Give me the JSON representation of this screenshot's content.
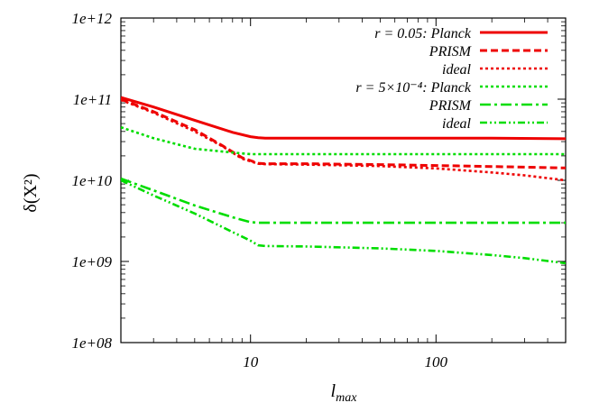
{
  "chart_data": {
    "type": "line",
    "xlabel": "l",
    "xlabel_sub": "max",
    "ylabel": "δ(X²)",
    "x_scale": "log",
    "y_scale": "log",
    "xlim": [
      2,
      500
    ],
    "ylim": [
      100000000.0,
      1000000000000.0
    ],
    "x_ticks": [
      {
        "value": 10,
        "label": "10"
      },
      {
        "value": 100,
        "label": "100"
      }
    ],
    "y_ticks": [
      {
        "value": 100000000.0,
        "label": "1e+08"
      },
      {
        "value": 1000000000.0,
        "label": "1e+09"
      },
      {
        "value": 10000000000.0,
        "label": "1e+10"
      },
      {
        "value": 100000000000.0,
        "label": "1e+11"
      },
      {
        "value": 1000000000000.0,
        "label": "1e+12"
      }
    ],
    "grid": false,
    "legend_position": "top-right",
    "series": [
      {
        "name": "r = 0.05: Planck",
        "color": "#ee0000",
        "dash": "solid",
        "x": [
          2,
          3,
          5,
          8,
          10,
          11,
          12,
          20,
          50,
          100,
          200,
          500
        ],
        "y": [
          105000000000.0,
          80000000000.0,
          55000000000.0,
          39000000000.0,
          34500000000.0,
          33500000000.0,
          33000000000.0,
          33000000000.0,
          33000000000.0,
          33000000000.0,
          33000000000.0,
          32500000000.0
        ]
      },
      {
        "name": "PRISM",
        "color": "#ee0000",
        "dash": "dashed",
        "x": [
          2,
          3,
          5,
          7,
          9,
          11,
          12,
          20,
          50,
          100,
          200,
          500
        ],
        "y": [
          100000000000.0,
          70000000000.0,
          42000000000.0,
          27000000000.0,
          19000000000.0,
          16200000000.0,
          16000000000.0,
          16000000000.0,
          15600000000.0,
          15200000000.0,
          14800000000.0,
          14200000000.0
        ]
      },
      {
        "name": "ideal",
        "color": "#ee0000",
        "dash": "dotted",
        "x": [
          2,
          3,
          5,
          7,
          9,
          11,
          12,
          20,
          50,
          100,
          200,
          300,
          500
        ],
        "y": [
          98000000000.0,
          68000000000.0,
          40000000000.0,
          26500000000.0,
          18500000000.0,
          16000000000.0,
          15800000000.0,
          15600000000.0,
          15000000000.0,
          14000000000.0,
          12500000000.0,
          11500000000.0,
          10000000000.0
        ]
      },
      {
        "name": "r = 5×10⁻⁴: Planck",
        "color": "#00dd00",
        "dash": "dotted",
        "x": [
          2,
          3,
          5,
          8,
          10,
          11,
          20,
          50,
          100,
          200,
          500
        ],
        "y": [
          45000000000.0,
          33000000000.0,
          24500000000.0,
          22000000000.0,
          21000000000.0,
          21000000000.0,
          21000000000.0,
          21000000000.0,
          21000000000.0,
          21000000000.0,
          21000000000.0
        ]
      },
      {
        "name": "PRISM",
        "color": "#00dd00",
        "dash": "dash-dot",
        "x": [
          2,
          3,
          5,
          8,
          10,
          11,
          12,
          20,
          50,
          100,
          200,
          500
        ],
        "y": [
          10500000000.0,
          7500000000.0,
          4900000000.0,
          3500000000.0,
          3050000000.0,
          3000000000.0,
          3000000000.0,
          3000000000.0,
          3000000000.0,
          3000000000.0,
          3000000000.0,
          3000000000.0
        ]
      },
      {
        "name": "ideal",
        "color": "#00dd00",
        "dash": "dash-dot-dot",
        "x": [
          2,
          3,
          5,
          8,
          10,
          11,
          12,
          20,
          50,
          100,
          200,
          300,
          500
        ],
        "y": [
          10000000000.0,
          6500000000.0,
          3900000000.0,
          2300000000.0,
          1800000000.0,
          1580000000.0,
          1550000000.0,
          1530000000.0,
          1450000000.0,
          1350000000.0,
          1200000000.0,
          1100000000.0,
          950000000.0
        ]
      }
    ]
  }
}
